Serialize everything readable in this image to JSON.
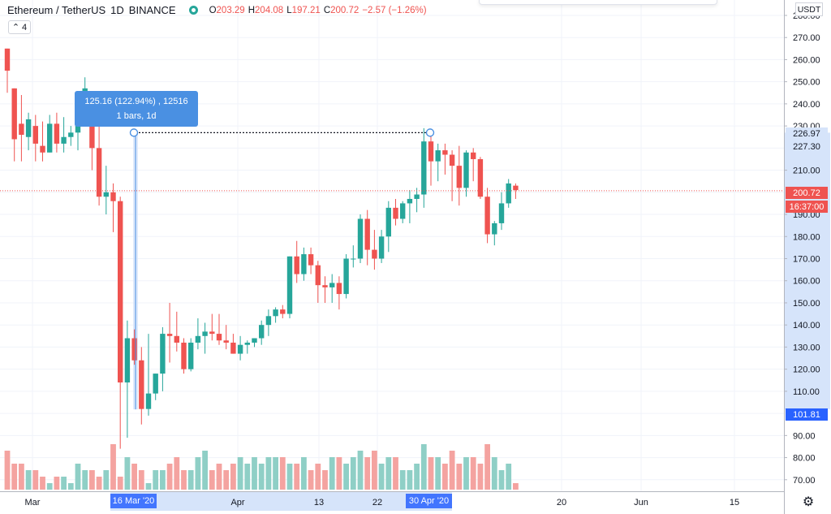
{
  "legend": {
    "symbol": "Ethereum / TetherUS",
    "interval": "1D",
    "exchange": "BINANCE",
    "open_label": "O",
    "open": "203.29",
    "high_label": "H",
    "high": "204.08",
    "low_label": "L",
    "low": "197.21",
    "close_label": "C",
    "close": "200.72",
    "change": "−2.57 (−1.26%)"
  },
  "collapse_count": "4",
  "currency": "USDT",
  "measure_tooltip": {
    "line1": "125.16 (122.94%) , 12516",
    "line2": "1 bars, 1d"
  },
  "price_labels": {
    "target": "226.97",
    "high_price": "227.30",
    "last_price": "200.72",
    "countdown": "16:37:00",
    "low_price": "101.81"
  },
  "time_labels": {
    "start": "16 Mar '20",
    "end": "30 Apr '20"
  },
  "colors": {
    "up": "#26a69a",
    "down": "#ef5350",
    "up_volume": "#8fcfc6",
    "down_volume": "#f4a3a0",
    "selection": "#d6e4fa",
    "accent": "#2962ff",
    "tooltip": "#4a90e2"
  },
  "chart_data": {
    "type": "candlestick",
    "y_axis": {
      "ticks": [
        "280.00",
        "270.00",
        "260.00",
        "250.00",
        "240.00",
        "230.00",
        "210.00",
        "190.00",
        "180.00",
        "170.00",
        "160.00",
        "150.00",
        "140.00",
        "130.00",
        "120.00",
        "110.00",
        "90.00",
        "80.00",
        "70.00"
      ],
      "range": [
        66,
        290
      ]
    },
    "x_axis": {
      "ticks": [
        "Mar",
        "Apr",
        "13",
        "22",
        "20",
        "Jun",
        "15"
      ]
    },
    "highlight_range": [
      "16 Mar '20",
      "30 Apr '20"
    ],
    "measure": {
      "from": 101.81,
      "to": 226.97,
      "change": 125.16,
      "change_pct": 122.94
    },
    "last_price": 200.72,
    "candles": [
      [
        265,
        265,
        245,
        255,
        6
      ],
      [
        247,
        247,
        214,
        224,
        4
      ],
      [
        231,
        244,
        214,
        226,
        4
      ],
      [
        225,
        236,
        219,
        233,
        3
      ],
      [
        230,
        235,
        214,
        222,
        3
      ],
      [
        221,
        232,
        214,
        218,
        2
      ],
      [
        218,
        235,
        218,
        231,
        1
      ],
      [
        231,
        236,
        218,
        222,
        2
      ],
      [
        222,
        234,
        218,
        225,
        2
      ],
      [
        225,
        230,
        221,
        227,
        1
      ],
      [
        227,
        244,
        219,
        240,
        4
      ],
      [
        238,
        252,
        233,
        247,
        3
      ],
      [
        239,
        242,
        210,
        220,
        3
      ],
      [
        220,
        232,
        194,
        198,
        2
      ],
      [
        198,
        212,
        190,
        200,
        3
      ],
      [
        200,
        204,
        182,
        196,
        7
      ],
      [
        196,
        198,
        84,
        114,
        2
      ],
      [
        114,
        142,
        89,
        134,
        5
      ],
      [
        134,
        138,
        122,
        124,
        4
      ],
      [
        124,
        130,
        95,
        102,
        3
      ],
      [
        102,
        136,
        99,
        109,
        1
      ],
      [
        109,
        118,
        106,
        118,
        3
      ],
      [
        118,
        139,
        110,
        136,
        3
      ],
      [
        136,
        150,
        123,
        135,
        4
      ],
      [
        135,
        146,
        128,
        132,
        5
      ],
      [
        132,
        134,
        118,
        120,
        3
      ],
      [
        120,
        134,
        119,
        132,
        3
      ],
      [
        132,
        143,
        129,
        135,
        5
      ],
      [
        135,
        141,
        127,
        137,
        6
      ],
      [
        137,
        145,
        133,
        136,
        3
      ],
      [
        136,
        145,
        131,
        133,
        4
      ],
      [
        133,
        140,
        129,
        132,
        3
      ],
      [
        132,
        136,
        127,
        127,
        4
      ],
      [
        127,
        135,
        124,
        131,
        5
      ],
      [
        131,
        133,
        127,
        132,
        4
      ],
      [
        132,
        134,
        130,
        134,
        5
      ],
      [
        134,
        142,
        131,
        140,
        4
      ],
      [
        140,
        147,
        135,
        144,
        5
      ],
      [
        144,
        148,
        141,
        147,
        5
      ],
      [
        147,
        149,
        143,
        145,
        5
      ],
      [
        145,
        171,
        143,
        171,
        4
      ],
      [
        171,
        178,
        159,
        163,
        4
      ],
      [
        163,
        175,
        160,
        172,
        5
      ],
      [
        172,
        175,
        163,
        167,
        3
      ],
      [
        167,
        169,
        150,
        158,
        4
      ],
      [
        158,
        162,
        150,
        157,
        3
      ],
      [
        157,
        163,
        150,
        159,
        5
      ],
      [
        159,
        162,
        147,
        154,
        5
      ],
      [
        154,
        172,
        152,
        170,
        4
      ],
      [
        170,
        176,
        166,
        170,
        5
      ],
      [
        170,
        190,
        168,
        188,
        6
      ],
      [
        188,
        192,
        167,
        174,
        5
      ],
      [
        174,
        183,
        165,
        170,
        6
      ],
      [
        170,
        183,
        168,
        180,
        4
      ],
      [
        180,
        196,
        173,
        193,
        5
      ],
      [
        193,
        197,
        185,
        188,
        5
      ],
      [
        188,
        196,
        186,
        195,
        3
      ],
      [
        195,
        201,
        186,
        197,
        3
      ],
      [
        197,
        202,
        191,
        199,
        4
      ],
      [
        199,
        229,
        193,
        223,
        7
      ],
      [
        223,
        227,
        203,
        214,
        5
      ],
      [
        214,
        222,
        205,
        219,
        5
      ],
      [
        219,
        222,
        208,
        217,
        4
      ],
      [
        217,
        219,
        196,
        212,
        6
      ],
      [
        212,
        221,
        194,
        202,
        4
      ],
      [
        202,
        219,
        198,
        218,
        5
      ],
      [
        218,
        220,
        205,
        215,
        5
      ],
      [
        215,
        216,
        197,
        198,
        4
      ],
      [
        198,
        202,
        177,
        181,
        7
      ],
      [
        181,
        187,
        176,
        186,
        5
      ],
      [
        186,
        200,
        183,
        195,
        3
      ],
      [
        195,
        206,
        193,
        204,
        4
      ],
      [
        203,
        204,
        197,
        201,
        1
      ]
    ]
  }
}
